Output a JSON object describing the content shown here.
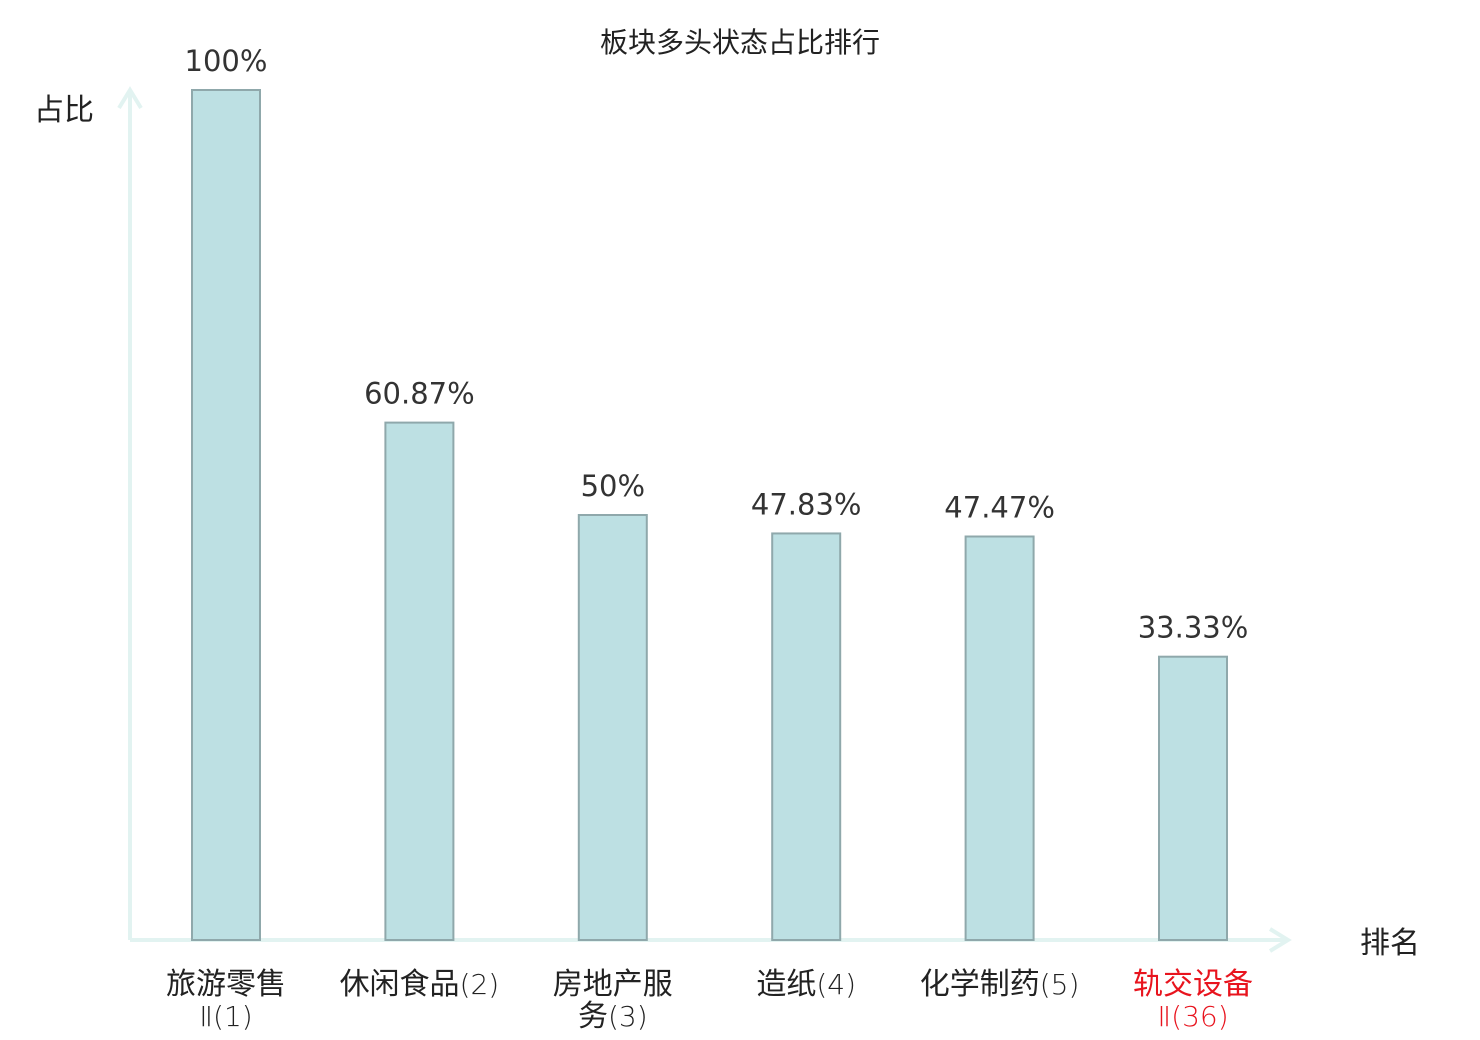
{
  "chart_data": {
    "type": "bar",
    "title": "板块多头状态占比排行",
    "ylabel": "占比",
    "xlabel": "排名",
    "ylim": [
      0,
      100
    ],
    "grid": false,
    "categories": [
      {
        "name": "旅游零售",
        "lines": [
          {
            "cn": "旅游零售",
            "num": ""
          },
          {
            "cn": "",
            "num": "Ⅱ(1)"
          }
        ],
        "highlight": false
      },
      {
        "name": "休闲食品",
        "lines": [
          {
            "cn": "休闲食品",
            "num": "(2)"
          }
        ],
        "highlight": false
      },
      {
        "name": "房地产服务",
        "lines": [
          {
            "cn": "房地产服",
            "num": ""
          },
          {
            "cn": "务",
            "num": "(3)"
          }
        ],
        "highlight": false
      },
      {
        "name": "造纸",
        "lines": [
          {
            "cn": "造纸",
            "num": "(4)"
          }
        ],
        "highlight": false
      },
      {
        "name": "化学制药",
        "lines": [
          {
            "cn": "化学制药",
            "num": "(5)"
          }
        ],
        "highlight": false
      },
      {
        "name": "轨交设备",
        "lines": [
          {
            "cn": "轨交设备",
            "num": ""
          },
          {
            "cn": "",
            "num": "Ⅱ(36)"
          }
        ],
        "highlight": true
      }
    ],
    "values": [
      100,
      60.87,
      50,
      47.83,
      47.47,
      33.33
    ],
    "value_labels": [
      "100%",
      "60.87%",
      "50%",
      "47.83%",
      "47.47%",
      "33.33%"
    ],
    "colors": {
      "bar_fill": "#bde0e3",
      "bar_stroke": "#8fa8ab",
      "axis": "#e2f3f1",
      "text": "#222222",
      "highlight": "#e8141e"
    }
  }
}
